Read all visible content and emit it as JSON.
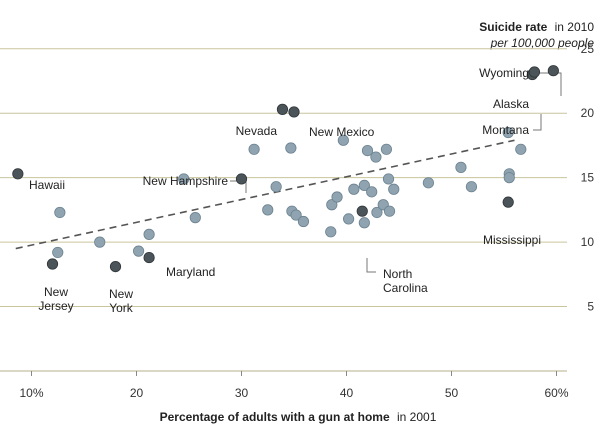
{
  "chart_data": {
    "type": "scatter",
    "title": "Suicide rate",
    "title_suffix": "in 2010",
    "subtitle": "per 100,000 people",
    "xlabel": "Percentage of adults with a gun at home",
    "xlabel_suffix": "in 2001",
    "xlim": [
      7,
      61
    ],
    "ylim": [
      0,
      27
    ],
    "x_ticks": [
      10,
      20,
      30,
      40,
      50,
      60
    ],
    "x_tick_labels": [
      "10%",
      "20",
      "30",
      "40",
      "50",
      "60%"
    ],
    "y_ticks": [
      5,
      10,
      15,
      20,
      25
    ],
    "y_tick_labels": [
      "5",
      "10",
      "15",
      "20",
      "25"
    ],
    "grid": "horizontal",
    "trendline": {
      "from": [
        8.5,
        9.5
      ],
      "to": [
        56,
        17.9
      ],
      "style": "dashed"
    },
    "colors": {
      "point": "#8fa4b0",
      "highlight": "#4a5459",
      "grid": "#c9c59d",
      "trend": "#555555"
    },
    "points": [
      {
        "x": 12.7,
        "y": 12.3
      },
      {
        "x": 12.5,
        "y": 9.2
      },
      {
        "x": 16.5,
        "y": 10.0
      },
      {
        "x": 20.2,
        "y": 9.3
      },
      {
        "x": 21.2,
        "y": 10.6
      },
      {
        "x": 24.5,
        "y": 14.9
      },
      {
        "x": 25.6,
        "y": 11.9
      },
      {
        "x": 31.2,
        "y": 17.2
      },
      {
        "x": 32.5,
        "y": 12.5
      },
      {
        "x": 33.3,
        "y": 14.3
      },
      {
        "x": 34.7,
        "y": 17.3
      },
      {
        "x": 34.8,
        "y": 12.4
      },
      {
        "x": 35.2,
        "y": 12.1
      },
      {
        "x": 35.9,
        "y": 11.6
      },
      {
        "x": 38.5,
        "y": 10.8
      },
      {
        "x": 38.6,
        "y": 12.9
      },
      {
        "x": 39.1,
        "y": 13.5
      },
      {
        "x": 39.7,
        "y": 17.9
      },
      {
        "x": 40.2,
        "y": 11.8
      },
      {
        "x": 40.7,
        "y": 14.1
      },
      {
        "x": 41.7,
        "y": 11.5
      },
      {
        "x": 41.7,
        "y": 14.4
      },
      {
        "x": 42.0,
        "y": 17.1
      },
      {
        "x": 42.4,
        "y": 13.9
      },
      {
        "x": 42.8,
        "y": 16.6
      },
      {
        "x": 42.9,
        "y": 12.3
      },
      {
        "x": 43.5,
        "y": 12.9
      },
      {
        "x": 43.8,
        "y": 17.2
      },
      {
        "x": 44.1,
        "y": 12.4
      },
      {
        "x": 44.0,
        "y": 14.9
      },
      {
        "x": 44.5,
        "y": 14.1
      },
      {
        "x": 47.8,
        "y": 14.6
      },
      {
        "x": 50.9,
        "y": 15.8
      },
      {
        "x": 51.9,
        "y": 14.3
      },
      {
        "x": 55.4,
        "y": 18.5
      },
      {
        "x": 55.5,
        "y": 15.3
      },
      {
        "x": 55.5,
        "y": 15.0
      },
      {
        "x": 56.6,
        "y": 17.2
      }
    ],
    "highlighted": [
      {
        "label": "Hawaii",
        "x": 8.7,
        "y": 15.3
      },
      {
        "label": "New Jersey",
        "x": 12.0,
        "y": 8.3
      },
      {
        "label": "New York",
        "x": 18.0,
        "y": 8.1
      },
      {
        "label": "Maryland",
        "x": 21.2,
        "y": 8.8
      },
      {
        "label": "New Hampshire",
        "x": 30.0,
        "y": 14.9
      },
      {
        "label": "Nevada",
        "x": 33.9,
        "y": 20.3
      },
      {
        "label": "New Mexico",
        "x": 35.0,
        "y": 20.1
      },
      {
        "label": "North Carolina",
        "x": 41.5,
        "y": 12.4
      },
      {
        "label": "Mississippi",
        "x": 55.4,
        "y": 13.1
      },
      {
        "label": "Alaska",
        "x": 57.7,
        "y": 23.0
      },
      {
        "label": "Montana",
        "x": 57.9,
        "y": 23.2
      },
      {
        "label": "Wyoming",
        "x": 59.7,
        "y": 23.3
      }
    ]
  }
}
